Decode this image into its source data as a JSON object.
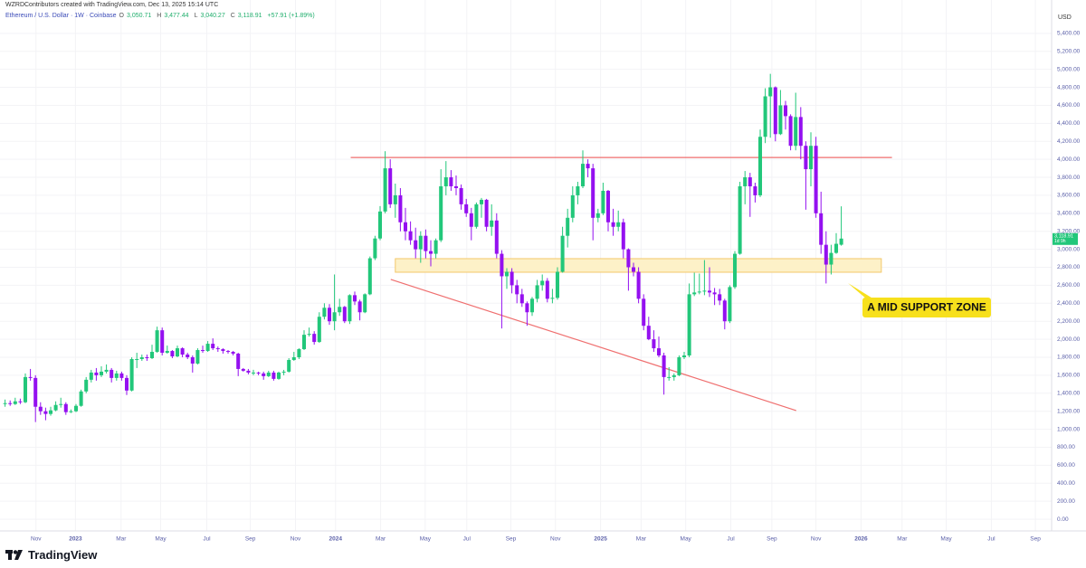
{
  "header": {
    "attribution": "WZRDContributors created with TradingView.com, Dec 13, 2025 15:14 UTC"
  },
  "footer": {
    "brand": "TradingView"
  },
  "chart_data": {
    "type": "candlestick",
    "legend": {
      "symbol": "Ethereum / U.S. Dollar · 1W · Coinbase",
      "fields": [
        {
          "key": "O",
          "label": "3,050.71"
        },
        {
          "key": "H",
          "label": "3,477.44"
        },
        {
          "key": "L",
          "label": "3,040.27"
        },
        {
          "key": "C",
          "label": "3,118.91"
        }
      ],
      "change": "+57.91 (+1.89%)"
    },
    "y_unit": "USD",
    "up_color": "#22c77a",
    "down_color": "#9410f0",
    "grid": true,
    "xlim": [
      -1,
      206.5
    ],
    "ylim": [
      -130,
      5670
    ],
    "xticks": [
      {
        "value": 6.1,
        "label": "Nov"
      },
      {
        "value": 13.9,
        "label": "2023"
      },
      {
        "value": 22.9,
        "label": "Mar"
      },
      {
        "value": 30.7,
        "label": "May"
      },
      {
        "value": 39.8,
        "label": "Jul"
      },
      {
        "value": 48.4,
        "label": "Sep"
      },
      {
        "value": 57.3,
        "label": "Nov"
      },
      {
        "value": 65.2,
        "label": "2024"
      },
      {
        "value": 74.1,
        "label": "Mar"
      },
      {
        "value": 82.9,
        "label": "May"
      },
      {
        "value": 91.1,
        "label": "Jul"
      },
      {
        "value": 99.8,
        "label": "Sep"
      },
      {
        "value": 108.6,
        "label": "Nov"
      },
      {
        "value": 117.5,
        "label": "2025"
      },
      {
        "value": 125.5,
        "label": "Mar"
      },
      {
        "value": 134.3,
        "label": "May"
      },
      {
        "value": 143.2,
        "label": "Jul"
      },
      {
        "value": 151.3,
        "label": "Sep"
      },
      {
        "value": 160.0,
        "label": "Nov"
      },
      {
        "value": 168.9,
        "label": "2026"
      },
      {
        "value": 177.0,
        "label": "Mar"
      },
      {
        "value": 185.7,
        "label": "May"
      },
      {
        "value": 194.6,
        "label": "Jul"
      },
      {
        "value": 203.3,
        "label": "Sep"
      }
    ],
    "yticks": [
      {
        "value": 0,
        "label": "0.00"
      },
      {
        "value": 200,
        "label": "200.00"
      },
      {
        "value": 400,
        "label": "400.00"
      },
      {
        "value": 600,
        "label": "600.00"
      },
      {
        "value": 800,
        "label": "800.00"
      },
      {
        "value": 1000,
        "label": "1,000.00"
      },
      {
        "value": 1200,
        "label": "1,200.00"
      },
      {
        "value": 1400,
        "label": "1,400.00"
      },
      {
        "value": 1600,
        "label": "1,600.00"
      },
      {
        "value": 1800,
        "label": "1,800.00"
      },
      {
        "value": 2000,
        "label": "2,000.00"
      },
      {
        "value": 2200,
        "label": "2,200.00"
      },
      {
        "value": 2400,
        "label": "2,400.00"
      },
      {
        "value": 2600,
        "label": "2,600.00"
      },
      {
        "value": 2800,
        "label": "2,800.00"
      },
      {
        "value": 3000,
        "label": "3,000.00"
      },
      {
        "value": 3200,
        "label": "3,200.00"
      },
      {
        "value": 3400,
        "label": "3,400.00"
      },
      {
        "value": 3600,
        "label": "3,600.00"
      },
      {
        "value": 3800,
        "label": "3,800.00"
      },
      {
        "value": 4000,
        "label": "4,000.00"
      },
      {
        "value": 4200,
        "label": "4,200.00"
      },
      {
        "value": 4400,
        "label": "4,400.00"
      },
      {
        "value": 4600,
        "label": "4,600.00"
      },
      {
        "value": 4800,
        "label": "4,800.00"
      },
      {
        "value": 5000,
        "label": "5,000.00"
      },
      {
        "value": 5200,
        "label": "5,200.00"
      },
      {
        "value": 5400,
        "label": "5,400.00"
      }
    ],
    "candles": [
      [
        1280,
        1330,
        1250,
        1290
      ],
      [
        1290,
        1320,
        1260,
        1280
      ],
      [
        1280,
        1350,
        1270,
        1310
      ],
      [
        1310,
        1340,
        1280,
        1300
      ],
      [
        1300,
        1620,
        1290,
        1580
      ],
      [
        1580,
        1670,
        1540,
        1570
      ],
      [
        1570,
        1600,
        1080,
        1250
      ],
      [
        1250,
        1300,
        1160,
        1200
      ],
      [
        1200,
        1240,
        1100,
        1170
      ],
      [
        1170,
        1250,
        1150,
        1210
      ],
      [
        1210,
        1310,
        1200,
        1270
      ],
      [
        1270,
        1350,
        1240,
        1280
      ],
      [
        1280,
        1300,
        1160,
        1190
      ],
      [
        1190,
        1220,
        1180,
        1200
      ],
      [
        1200,
        1280,
        1190,
        1260
      ],
      [
        1260,
        1440,
        1250,
        1420
      ],
      [
        1420,
        1580,
        1400,
        1550
      ],
      [
        1550,
        1660,
        1520,
        1630
      ],
      [
        1630,
        1680,
        1540,
        1600
      ],
      [
        1600,
        1700,
        1580,
        1640
      ],
      [
        1640,
        1720,
        1620,
        1660
      ],
      [
        1660,
        1680,
        1520,
        1570
      ],
      [
        1570,
        1650,
        1540,
        1620
      ],
      [
        1620,
        1640,
        1540,
        1570
      ],
      [
        1570,
        1600,
        1380,
        1430
      ],
      [
        1430,
        1800,
        1420,
        1780
      ],
      [
        1780,
        1850,
        1680,
        1780
      ],
      [
        1780,
        1830,
        1760,
        1800
      ],
      [
        1800,
        1830,
        1760,
        1790
      ],
      [
        1790,
        1940,
        1780,
        1860
      ],
      [
        1860,
        2140,
        1850,
        2100
      ],
      [
        2100,
        2130,
        1820,
        1850
      ],
      [
        1850,
        1930,
        1840,
        1870
      ],
      [
        1870,
        1880,
        1790,
        1810
      ],
      [
        1810,
        1930,
        1800,
        1900
      ],
      [
        1900,
        1910,
        1800,
        1830
      ],
      [
        1830,
        1850,
        1780,
        1800
      ],
      [
        1800,
        1820,
        1630,
        1730
      ],
      [
        1730,
        1900,
        1720,
        1880
      ],
      [
        1880,
        1930,
        1850,
        1870
      ],
      [
        1870,
        1980,
        1860,
        1950
      ],
      [
        1950,
        2010,
        1880,
        1900
      ],
      [
        1900,
        1920,
        1860,
        1890
      ],
      [
        1890,
        1900,
        1840,
        1870
      ],
      [
        1870,
        1880,
        1840,
        1860
      ],
      [
        1860,
        1870,
        1820,
        1840
      ],
      [
        1840,
        1850,
        1590,
        1670
      ],
      [
        1670,
        1680,
        1640,
        1650
      ],
      [
        1650,
        1670,
        1610,
        1630
      ],
      [
        1630,
        1660,
        1600,
        1630
      ],
      [
        1630,
        1640,
        1600,
        1620
      ],
      [
        1620,
        1640,
        1550,
        1590
      ],
      [
        1590,
        1650,
        1580,
        1630
      ],
      [
        1630,
        1650,
        1540,
        1560
      ],
      [
        1560,
        1640,
        1550,
        1630
      ],
      [
        1630,
        1660,
        1600,
        1640
      ],
      [
        1640,
        1790,
        1630,
        1770
      ],
      [
        1770,
        1860,
        1760,
        1800
      ],
      [
        1800,
        1900,
        1780,
        1890
      ],
      [
        1890,
        2100,
        1880,
        2050
      ],
      [
        2050,
        2130,
        2030,
        2060
      ],
      [
        2060,
        2090,
        1940,
        1970
      ],
      [
        1970,
        2300,
        1960,
        2250
      ],
      [
        2250,
        2400,
        2220,
        2350
      ],
      [
        2350,
        2390,
        2160,
        2200
      ],
      [
        2200,
        2720,
        2100,
        2300
      ],
      [
        2300,
        2450,
        2260,
        2360
      ],
      [
        2360,
        2370,
        2180,
        2200
      ],
      [
        2200,
        2500,
        2170,
        2490
      ],
      [
        2490,
        2530,
        2380,
        2420
      ],
      [
        2420,
        2440,
        2210,
        2300
      ],
      [
        2300,
        2510,
        2290,
        2500
      ],
      [
        2500,
        2920,
        2490,
        2900
      ],
      [
        2900,
        3150,
        2880,
        3120
      ],
      [
        3120,
        3480,
        3100,
        3420
      ],
      [
        3420,
        4090,
        3400,
        3900
      ],
      [
        3900,
        4000,
        3460,
        3500
      ],
      [
        3500,
        3730,
        3350,
        3600
      ],
      [
        3600,
        3680,
        3200,
        3300
      ],
      [
        3300,
        3460,
        3100,
        3200
      ],
      [
        3200,
        3310,
        3050,
        3100
      ],
      [
        3100,
        3240,
        2900,
        3000
      ],
      [
        3000,
        3200,
        2850,
        3150
      ],
      [
        3150,
        3220,
        2900,
        2980
      ],
      [
        2980,
        3100,
        2810,
        2950
      ],
      [
        2950,
        3120,
        2900,
        3100
      ],
      [
        3100,
        3890,
        3080,
        3700
      ],
      [
        3700,
        3980,
        3600,
        3800
      ],
      [
        3800,
        3880,
        3650,
        3700
      ],
      [
        3700,
        3820,
        3600,
        3680
      ],
      [
        3680,
        3720,
        3440,
        3500
      ],
      [
        3500,
        3560,
        3360,
        3400
      ],
      [
        3400,
        3460,
        3100,
        3250
      ],
      [
        3250,
        3520,
        3230,
        3500
      ],
      [
        3500,
        3570,
        3350,
        3550
      ],
      [
        3550,
        3560,
        3200,
        3250
      ],
      [
        3250,
        3500,
        3150,
        3320
      ],
      [
        3320,
        3400,
        2900,
        2950
      ],
      [
        2950,
        2990,
        2120,
        2700
      ],
      [
        2700,
        2790,
        2560,
        2750
      ],
      [
        2750,
        2790,
        2510,
        2600
      ],
      [
        2600,
        2660,
        2400,
        2500
      ],
      [
        2500,
        2560,
        2360,
        2400
      ],
      [
        2400,
        2420,
        2150,
        2300
      ],
      [
        2300,
        2470,
        2260,
        2450
      ],
      [
        2450,
        2660,
        2410,
        2600
      ],
      [
        2600,
        2720,
        2540,
        2650
      ],
      [
        2650,
        2680,
        2410,
        2450
      ],
      [
        2450,
        2560,
        2400,
        2460
      ],
      [
        2460,
        2800,
        2440,
        2750
      ],
      [
        2750,
        3250,
        2740,
        3150
      ],
      [
        3150,
        3450,
        3020,
        3350
      ],
      [
        3350,
        3700,
        3300,
        3600
      ],
      [
        3600,
        3750,
        3500,
        3700
      ],
      [
        3700,
        4100,
        3680,
        3950
      ],
      [
        3950,
        4000,
        3800,
        3900
      ],
      [
        3900,
        3950,
        3100,
        3350
      ],
      [
        3350,
        3450,
        3300,
        3400
      ],
      [
        3400,
        3740,
        3380,
        3650
      ],
      [
        3650,
        3660,
        3200,
        3300
      ],
      [
        3300,
        3450,
        3150,
        3250
      ],
      [
        3250,
        3430,
        3200,
        3300
      ],
      [
        3300,
        3340,
        2900,
        3000
      ],
      [
        3000,
        3010,
        2540,
        2800
      ],
      [
        2800,
        2850,
        2700,
        2750
      ],
      [
        2750,
        2800,
        2400,
        2450
      ],
      [
        2450,
        2500,
        2100,
        2150
      ],
      [
        2150,
        2250,
        1990,
        2000
      ],
      [
        2000,
        2100,
        1860,
        1900
      ],
      [
        1900,
        2030,
        1800,
        1820
      ],
      [
        1820,
        1850,
        1385,
        1580
      ],
      [
        1580,
        1690,
        1540,
        1580
      ],
      [
        1580,
        1620,
        1540,
        1600
      ],
      [
        1600,
        1820,
        1590,
        1800
      ],
      [
        1800,
        1860,
        1780,
        1820
      ],
      [
        1820,
        2620,
        1800,
        2500
      ],
      [
        2500,
        2740,
        2480,
        2520
      ],
      [
        2520,
        2730,
        2500,
        2530
      ],
      [
        2530,
        2880,
        2490,
        2540
      ],
      [
        2540,
        2800,
        2470,
        2520
      ],
      [
        2520,
        2570,
        2380,
        2500
      ],
      [
        2500,
        2560,
        2380,
        2430
      ],
      [
        2430,
        2450,
        2110,
        2200
      ],
      [
        2200,
        2600,
        2180,
        2580
      ],
      [
        2580,
        2980,
        2560,
        2950
      ],
      [
        2950,
        3750,
        2940,
        3700
      ],
      [
        3700,
        3870,
        3500,
        3800
      ],
      [
        3800,
        3850,
        3360,
        3700
      ],
      [
        3700,
        3740,
        3520,
        3600
      ],
      [
        3600,
        4330,
        3580,
        4250
      ],
      [
        4250,
        4790,
        4180,
        4700
      ],
      [
        4700,
        4950,
        4240,
        4800
      ],
      [
        4800,
        4810,
        4200,
        4280
      ],
      [
        4280,
        4770,
        4270,
        4600
      ],
      [
        4600,
        4650,
        4330,
        4480
      ],
      [
        4480,
        4500,
        4100,
        4150
      ],
      [
        4150,
        4740,
        4100,
        4470
      ],
      [
        4470,
        4580,
        4000,
        4150
      ],
      [
        4150,
        4200,
        3440,
        3890
      ],
      [
        3890,
        4300,
        3700,
        4150
      ],
      [
        4150,
        4250,
        3350,
        3400
      ],
      [
        3400,
        3640,
        2950,
        3050
      ],
      [
        3050,
        3200,
        2620,
        2830
      ],
      [
        2830,
        3050,
        2720,
        2960
      ],
      [
        2960,
        3180,
        2950,
        3061
      ],
      [
        3050.71,
        3477.44,
        3040.27,
        3118.91
      ]
    ],
    "price_tag": {
      "label": "3,118.91",
      "countdown": "1d 9h"
    },
    "drawings": [
      {
        "type": "line",
        "color": "#ef6f6f",
        "x": [
          68.2,
          175
        ],
        "y": [
          4020,
          4020
        ]
      },
      {
        "type": "line",
        "color": "#ef6f6f",
        "x": [
          76.1,
          156.1
        ],
        "y": [
          2665,
          1207
        ]
      },
      {
        "type": "zone",
        "color": "#f3c86b",
        "fill": "#fdf1c8",
        "x": [
          77,
          172.9
        ],
        "y": [
          2896,
          2745
        ]
      }
    ],
    "annotation": {
      "text": "A MID SUPPORT ZONE",
      "color": "#f7e01c"
    }
  }
}
